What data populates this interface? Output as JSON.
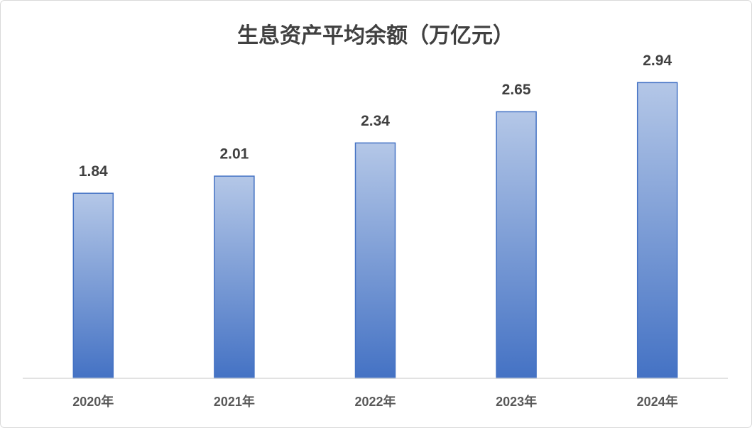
{
  "chart_data": {
    "type": "bar",
    "title": "生息资产平均余额（万亿元）",
    "categories": [
      "2020年",
      "2021年",
      "2022年",
      "2023年",
      "2024年"
    ],
    "values": [
      1.84,
      2.01,
      2.34,
      2.65,
      2.94
    ],
    "color": "#4472c4",
    "gradient_top_color": "#b4c7e7",
    "ylim": [
      0,
      3.5
    ],
    "grid": false
  }
}
